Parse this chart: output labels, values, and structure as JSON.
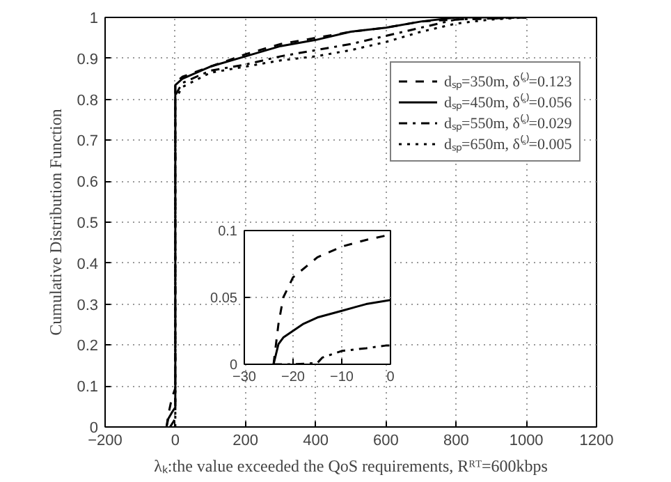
{
  "chart_data": [
    {
      "type": "line",
      "xlabel": "λₖ:the value exceeded the QoS requirements, Rᴿᵀ=600kbps",
      "ylabel": "Cumulative Distribution Function",
      "xlim": [
        -200,
        1200
      ],
      "ylim": [
        0,
        1
      ],
      "xticks": [
        -200,
        0,
        200,
        400,
        600,
        800,
        1000,
        1200
      ],
      "yticks": [
        0,
        0.1,
        0.2,
        0.3,
        0.4,
        0.5,
        0.6,
        0.7,
        0.8,
        0.9,
        1
      ],
      "grid": true,
      "legend": "top right",
      "marker": "none",
      "series": [
        {
          "name": "dₛₚ=350m, δ⁽ˢ⁾=0.123",
          "color": "#000000",
          "line_style": "dashed",
          "x": [
            -25,
            -20,
            -10,
            0,
            0,
            20,
            100,
            200,
            300,
            400,
            500,
            600,
            700,
            800,
            1000
          ],
          "values": [
            0,
            0.03,
            0.07,
            0.095,
            0.84,
            0.855,
            0.88,
            0.91,
            0.935,
            0.95,
            0.965,
            0.975,
            0.99,
            0.995,
            1
          ]
        },
        {
          "name": "dₛₚ=450m, δ⁽ˢ⁾=0.056",
          "color": "#000000",
          "line_style": "solid",
          "x": [
            -25,
            -20,
            -10,
            0,
            0,
            20,
            100,
            200,
            300,
            400,
            500,
            600,
            700,
            800,
            1000
          ],
          "values": [
            0,
            0.02,
            0.035,
            0.048,
            0.835,
            0.85,
            0.88,
            0.905,
            0.93,
            0.945,
            0.965,
            0.975,
            0.99,
            1,
            1
          ]
        },
        {
          "name": "dₛₚ=550m, δ⁽ˢ⁾=0.029",
          "color": "#000000",
          "line_style": "dashdot",
          "x": [
            -15,
            0,
            0,
            20,
            100,
            200,
            300,
            400,
            500,
            600,
            700,
            800,
            1000
          ],
          "values": [
            0,
            0.02,
            0.81,
            0.84,
            0.87,
            0.885,
            0.905,
            0.92,
            0.935,
            0.955,
            0.975,
            0.995,
            1
          ]
        },
        {
          "name": "dₛₚ=650m, δ⁽ˢ⁾=0.005",
          "color": "#000000",
          "line_style": "dotted",
          "x": [
            0,
            0,
            20,
            100,
            200,
            300,
            400,
            500,
            600,
            700,
            800,
            900,
            1000
          ],
          "values": [
            0,
            0.8,
            0.83,
            0.865,
            0.88,
            0.895,
            0.905,
            0.92,
            0.94,
            0.965,
            0.985,
            0.995,
            1
          ]
        }
      ]
    },
    {
      "type": "line",
      "xlim": [
        -30,
        0
      ],
      "ylim": [
        0,
        0.1
      ],
      "xticks": [
        -30,
        -20,
        -10,
        0
      ],
      "yticks": [
        0,
        0.05,
        0.1
      ],
      "grid": true,
      "marker": "none",
      "series": [
        {
          "color": "#000000",
          "line_style": "dashed",
          "x": [
            -24,
            -23,
            -22,
            -20,
            -15,
            -10,
            -5,
            0
          ],
          "values": [
            0,
            0.03,
            0.05,
            0.065,
            0.08,
            0.088,
            0.093,
            0.097
          ]
        },
        {
          "color": "#000000",
          "line_style": "solid",
          "x": [
            -24,
            -23,
            -22,
            -20,
            -18,
            -15,
            -10,
            -5,
            0
          ],
          "values": [
            0,
            0.015,
            0.02,
            0.025,
            0.03,
            0.035,
            0.04,
            0.045,
            0.048
          ]
        },
        {
          "color": "#000000",
          "line_style": "dashdot",
          "x": [
            -24,
            -20,
            -15,
            -14,
            -10,
            -5,
            -1,
            0
          ],
          "values": [
            0,
            0,
            0.001,
            0.005,
            0.01,
            0.012,
            0.014,
            0.014
          ]
        }
      ]
    }
  ]
}
